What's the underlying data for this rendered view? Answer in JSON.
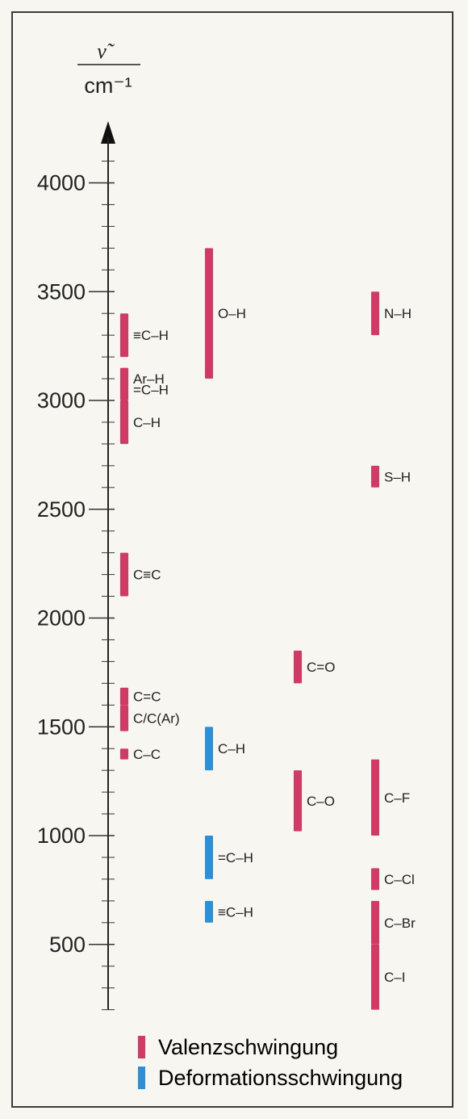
{
  "chart_data": {
    "type": "range-bar",
    "ylabel_symbol": "ν̃",
    "ylabel_unit": "cm⁻¹",
    "yticks": [
      "4000",
      "3500",
      "3000",
      "2500",
      "2000",
      "1500",
      "1000",
      "500"
    ],
    "ylim": [
      200,
      4000
    ],
    "colors": {
      "valenz": "#d23a66",
      "deformation": "#2f8fd6"
    },
    "columns": [
      [
        {
          "label": "≡C–H",
          "min": 3200,
          "max": 3400,
          "kind": "valenz"
        },
        {
          "label": "Ar–H",
          "min": 3050,
          "max": 3150,
          "kind": "valenz"
        },
        {
          "label": "=C–H",
          "min": 3000,
          "max": 3100,
          "kind": "valenz"
        },
        {
          "label": "C–H",
          "min": 2800,
          "max": 3000,
          "kind": "valenz"
        },
        {
          "label": "C≡C",
          "min": 2100,
          "max": 2300,
          "kind": "valenz"
        },
        {
          "label": "C=C",
          "min": 1600,
          "max": 1680,
          "kind": "valenz"
        },
        {
          "label": "C/C(Ar)",
          "min": 1480,
          "max": 1600,
          "kind": "valenz"
        },
        {
          "label": "C–C",
          "min": 1350,
          "max": 1400,
          "kind": "valenz"
        }
      ],
      [
        {
          "label": "O–H",
          "min": 3100,
          "max": 3700,
          "kind": "valenz"
        },
        {
          "label": "C–H",
          "min": 1300,
          "max": 1500,
          "kind": "deformation"
        },
        {
          "label": "=C–H",
          "min": 800,
          "max": 1000,
          "kind": "deformation"
        },
        {
          "label": "≡C–H",
          "min": 600,
          "max": 700,
          "kind": "deformation"
        }
      ],
      [
        {
          "label": "C=O",
          "min": 1700,
          "max": 1850,
          "kind": "valenz"
        },
        {
          "label": "C–O",
          "min": 1020,
          "max": 1300,
          "kind": "valenz"
        }
      ],
      [
        {
          "label": "N–H",
          "min": 3300,
          "max": 3500,
          "kind": "valenz"
        },
        {
          "label": "S–H",
          "min": 2600,
          "max": 2700,
          "kind": "valenz"
        },
        {
          "label": "C–F",
          "min": 1000,
          "max": 1350,
          "kind": "valenz"
        },
        {
          "label": "C–Cl",
          "min": 750,
          "max": 850,
          "kind": "valenz"
        },
        {
          "label": "C–Br",
          "min": 500,
          "max": 700,
          "kind": "valenz"
        },
        {
          "label": "C–I",
          "min": 200,
          "max": 500,
          "kind": "valenz"
        }
      ]
    ],
    "legend": [
      {
        "label": "Valenzschwingung",
        "kind": "valenz"
      },
      {
        "label": "Deformationsschwingung",
        "kind": "deformation"
      }
    ]
  }
}
